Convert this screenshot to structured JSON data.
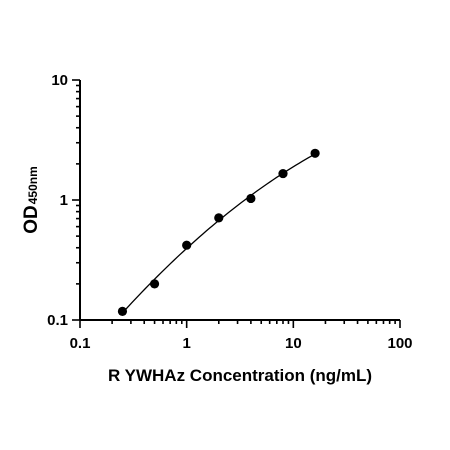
{
  "chart_data": {
    "type": "scatter",
    "x_scale": "log",
    "y_scale": "log",
    "xlim": [
      0.1,
      100
    ],
    "ylim": [
      0.1,
      10
    ],
    "x_ticks": [
      "0.1",
      "1",
      "10",
      "100"
    ],
    "y_ticks": [
      "0.1",
      "1",
      "10"
    ],
    "xlabel": "R YWHAz Concentration (ng/mL)",
    "ylabel_main": "OD",
    "ylabel_sub": "450nm",
    "grid": false,
    "fit_line": true,
    "series": [
      {
        "x": [
          0.25,
          0.5,
          1,
          2,
          4,
          8,
          16
        ],
        "y": [
          0.118,
          0.2,
          0.42,
          0.71,
          1.03,
          1.66,
          2.45
        ]
      }
    ],
    "colors": {
      "points": "#000000",
      "axes": "#000000",
      "fit_line": "#000000"
    }
  }
}
